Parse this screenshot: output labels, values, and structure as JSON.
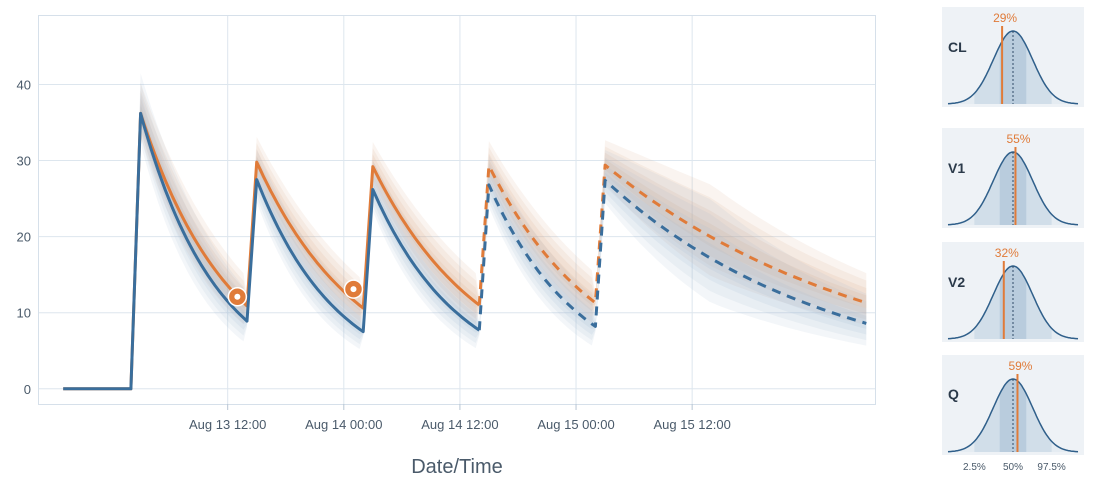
{
  "colors": {
    "orange": "#e07b39",
    "blue": "#3a6e9c",
    "band_orange": "#d9a583",
    "band_blue": "#9fb8d1",
    "grid": "#dde6ee",
    "panel_bg": "#eef2f6"
  },
  "chart_data": [
    {
      "type": "line",
      "xlabel": "Date/Time",
      "ylabel": "",
      "ylim": [
        -2,
        49
      ],
      "yticks": [
        0,
        10,
        20,
        30,
        40
      ],
      "xlim": [
        "2023-08-12 16:30",
        "2023-08-16 07:00"
      ],
      "xticks": [
        {
          "label": "Aug 13 12:00",
          "value": "2023-08-13 12:00"
        },
        {
          "label": "Aug 14 00:00",
          "value": "2023-08-14 00:00"
        },
        {
          "label": "Aug 14 12:00",
          "value": "2023-08-14 12:00"
        },
        {
          "label": "Aug 15 00:00",
          "value": "2023-08-15 00:00"
        },
        {
          "label": "Aug 15 12:00",
          "value": "2023-08-15 12:00"
        }
      ],
      "grid": true,
      "doses": [
        "2023-08-13 02:00",
        "2023-08-13 14:00",
        "2023-08-14 02:00",
        "2023-08-14 14:00",
        "2023-08-15 02:00"
      ],
      "start": "2023-08-12 19:00",
      "end": "2023-08-16 06:00",
      "observed_until": "2023-08-14 14:00",
      "series": [
        {
          "color": "orange",
          "start_value": 0,
          "peaks": [
            36.2,
            29.8,
            29.2,
            29.3,
            29.4
          ],
          "troughs": [
            10.9,
            10.6,
            11.0,
            11.3,
            11.3
          ],
          "band_spread": 0.32
        },
        {
          "color": "blue",
          "start_value": 0,
          "peaks": [
            36.2,
            27.5,
            26.2,
            26.8,
            27.4
          ],
          "troughs": [
            8.9,
            7.5,
            7.7,
            8.2,
            8.6
          ],
          "band_spread": 0.42
        }
      ],
      "observations": [
        {
          "x": "2023-08-13 13:00",
          "y": 12.1
        },
        {
          "x": "2023-08-14 01:00",
          "y": 13.1
        }
      ]
    },
    {
      "type": "area",
      "panels": [
        {
          "label": "CL",
          "percentile": 29,
          "percentile_label": "29%"
        },
        {
          "label": "V1",
          "percentile": 55,
          "percentile_label": "55%"
        },
        {
          "label": "V2",
          "percentile": 32,
          "percentile_label": "32%"
        },
        {
          "label": "Q",
          "percentile": 59,
          "percentile_label": "59%"
        }
      ],
      "quantile_labels": [
        "2.5%",
        "50%",
        "97.5%"
      ]
    }
  ]
}
